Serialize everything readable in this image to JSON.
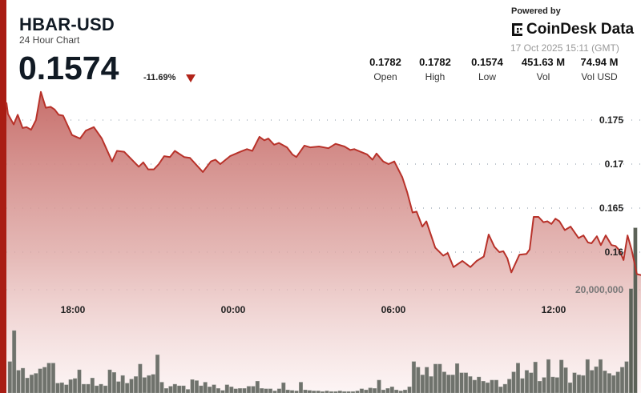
{
  "header": {
    "title": "HBAR-USD",
    "subtitle": "24 Hour Chart",
    "price": "0.1574",
    "change": "-11.69%",
    "change_direction_icon": "triangle-down-icon"
  },
  "branding": {
    "powered_by": "Powered by",
    "logo_text": "CoinDesk Data",
    "timestamp": "17 Oct 2025 15:11 (GMT)"
  },
  "stats": [
    {
      "value": "0.1782",
      "label": "Open"
    },
    {
      "value": "0.1782",
      "label": "High"
    },
    {
      "value": "0.1574",
      "label": "Low"
    },
    {
      "value": "451.63 M",
      "label": "Vol"
    },
    {
      "value": "74.94 M",
      "label": "Vol USD"
    }
  ],
  "colors": {
    "accent": "#a91d14",
    "line": "#b8322a",
    "fill_top": "#c7716c",
    "volume": "#6f726c"
  },
  "chart_data": {
    "type": "area",
    "y_ticks": [
      "0.175",
      "0.17",
      "0.165",
      "0.16"
    ],
    "x_ticks": [
      "18:00",
      "00:00",
      "06:00",
      "12:00"
    ],
    "volume_tick": "20,000,000",
    "ylim": [
      0.1555,
      0.1788
    ],
    "grid": true,
    "price_series": [
      [
        "15:31",
        0.177
      ],
      [
        "15:34",
        0.1757
      ],
      [
        "15:47",
        0.1745
      ],
      [
        "15:56",
        0.1756
      ],
      [
        "16:07",
        0.1741
      ],
      [
        "16:16",
        0.1742
      ],
      [
        "16:26",
        0.1739
      ],
      [
        "16:37",
        0.175
      ],
      [
        "16:48",
        0.1782
      ],
      [
        "16:59",
        0.1764
      ],
      [
        "17:10",
        0.1765
      ],
      [
        "17:19",
        0.1762
      ],
      [
        "17:28",
        0.1756
      ],
      [
        "17:38",
        0.1755
      ],
      [
        "17:58",
        0.1733
      ],
      [
        "18:16",
        0.1729
      ],
      [
        "18:29",
        0.1738
      ],
      [
        "18:47",
        0.1742
      ],
      [
        "19:05",
        0.1729
      ],
      [
        "19:28",
        0.1703
      ],
      [
        "19:39",
        0.1715
      ],
      [
        "19:55",
        0.1714
      ],
      [
        "20:28",
        0.1697
      ],
      [
        "20:38",
        0.1702
      ],
      [
        "20:49",
        0.1694
      ],
      [
        "21:02",
        0.1694
      ],
      [
        "21:13",
        0.17
      ],
      [
        "21:25",
        0.1709
      ],
      [
        "21:38",
        0.1708
      ],
      [
        "21:49",
        0.1715
      ],
      [
        "22:10",
        0.1708
      ],
      [
        "22:23",
        0.1707
      ],
      [
        "22:52",
        0.1691
      ],
      [
        "23:10",
        0.1703
      ],
      [
        "23:20",
        0.1705
      ],
      [
        "23:31",
        0.17
      ],
      [
        "23:53",
        0.1709
      ],
      [
        "00:16",
        0.1714
      ],
      [
        "00:31",
        0.1717
      ],
      [
        "00:43",
        0.1715
      ],
      [
        "00:59",
        0.1731
      ],
      [
        "01:10",
        0.1727
      ],
      [
        "01:19",
        0.1729
      ],
      [
        "01:32",
        0.1722
      ],
      [
        "01:43",
        0.1724
      ],
      [
        "02:01",
        0.1719
      ],
      [
        "02:13",
        0.1711
      ],
      [
        "02:22",
        0.1708
      ],
      [
        "02:40",
        0.1721
      ],
      [
        "02:53",
        0.1719
      ],
      [
        "03:13",
        0.172
      ],
      [
        "03:34",
        0.1718
      ],
      [
        "03:50",
        0.1723
      ],
      [
        "04:10",
        0.172
      ],
      [
        "04:23",
        0.1716
      ],
      [
        "04:32",
        0.1717
      ],
      [
        "04:46",
        0.1714
      ],
      [
        "05:01",
        0.1711
      ],
      [
        "05:13",
        0.1705
      ],
      [
        "05:22",
        0.1712
      ],
      [
        "05:37",
        0.1703
      ],
      [
        "05:49",
        0.17
      ],
      [
        "06:02",
        0.1703
      ],
      [
        "06:20",
        0.1685
      ],
      [
        "06:31",
        0.1668
      ],
      [
        "06:43",
        0.1645
      ],
      [
        "06:52",
        0.1646
      ],
      [
        "07:05",
        0.1629
      ],
      [
        "07:14",
        0.1635
      ],
      [
        "07:34",
        0.1605
      ],
      [
        "07:52",
        0.1596
      ],
      [
        "08:02",
        0.1599
      ],
      [
        "08:15",
        0.1583
      ],
      [
        "08:35",
        0.159
      ],
      [
        "08:53",
        0.1583
      ],
      [
        "09:07",
        0.159
      ],
      [
        "09:23",
        0.1595
      ],
      [
        "09:34",
        0.162
      ],
      [
        "09:47",
        0.1606
      ],
      [
        "09:58",
        0.16
      ],
      [
        "10:07",
        0.1601
      ],
      [
        "10:16",
        0.1593
      ],
      [
        "10:25",
        0.1577
      ],
      [
        "10:43",
        0.1597
      ],
      [
        "10:59",
        0.1598
      ],
      [
        "11:06",
        0.1603
      ],
      [
        "11:15",
        0.164
      ],
      [
        "11:26",
        0.164
      ],
      [
        "11:37",
        0.1634
      ],
      [
        "11:46",
        0.1635
      ],
      [
        "11:55",
        0.1632
      ],
      [
        "12:04",
        0.1638
      ],
      [
        "12:13",
        0.1635
      ],
      [
        "12:25",
        0.1625
      ],
      [
        "12:38",
        0.1629
      ],
      [
        "12:56",
        0.1616
      ],
      [
        "13:07",
        0.1619
      ],
      [
        "13:17",
        0.1611
      ],
      [
        "13:25",
        0.161
      ],
      [
        "13:37",
        0.1618
      ],
      [
        "13:46",
        0.1608
      ],
      [
        "13:57",
        0.1619
      ],
      [
        "14:10",
        0.1608
      ],
      [
        "14:19",
        0.1607
      ],
      [
        "14:28",
        0.1602
      ],
      [
        "14:37",
        0.1591
      ],
      [
        "14:46",
        0.1619
      ],
      [
        "14:55",
        0.1603
      ],
      [
        "15:07",
        0.1575
      ],
      [
        "15:16",
        0.1574
      ]
    ],
    "volume_millions": [
      6.1,
      12.1,
      4.4,
      4.8,
      2.9,
      3.5,
      3.8,
      4.7,
      5.0,
      5.8,
      5.8,
      1.9,
      2.0,
      1.6,
      2.6,
      2.8,
      4.5,
      1.7,
      1.7,
      2.9,
      1.4,
      1.7,
      1.4,
      4.5,
      4.0,
      2.2,
      3.4,
      1.9,
      2.7,
      3.2,
      5.6,
      3.0,
      3.4,
      3.6,
      7.4,
      2.1,
      0.9,
      1.3,
      1.7,
      1.4,
      1.4,
      0.7,
      2.6,
      2.4,
      1.4,
      2.1,
      1.2,
      1.6,
      0.9,
      0.5,
      1.6,
      1.2,
      0.8,
      0.9,
      0.9,
      1.3,
      1.3,
      2.3,
      0.9,
      0.8,
      0.8,
      0.4,
      0.8,
      2.0,
      0.6,
      0.5,
      0.4,
      2.1,
      0.6,
      0.5,
      0.4,
      0.4,
      0.3,
      0.4,
      0.3,
      0.3,
      0.4,
      0.3,
      0.3,
      0.3,
      0.4,
      0.8,
      0.6,
      1.0,
      0.9,
      2.5,
      0.6,
      0.9,
      1.2,
      0.6,
      0.4,
      0.6,
      1.2,
      6.1,
      5.0,
      3.5,
      5.0,
      3.2,
      5.6,
      5.6,
      4.1,
      3.5,
      3.5,
      5.7,
      3.9,
      3.9,
      3.2,
      2.5,
      3.1,
      2.3,
      2.0,
      2.5,
      2.5,
      1.2,
      1.7,
      2.7,
      4.1,
      5.8,
      2.8,
      4.4,
      3.9,
      6.0,
      2.3,
      3.0,
      6.5,
      3.1,
      3.0,
      6.4,
      4.9,
      2.0,
      3.9,
      3.5,
      3.4,
      6.5,
      4.4,
      5.1,
      6.5,
      4.3,
      3.8,
      3.4,
      4.1,
      5.0,
      6.1,
      20.2,
      32.0
    ]
  }
}
